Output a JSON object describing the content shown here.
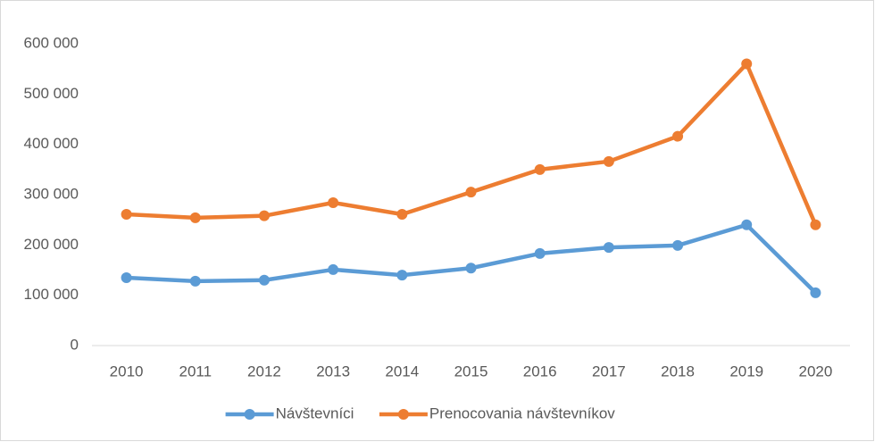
{
  "chart_data": {
    "type": "line",
    "categories": [
      "2010",
      "2011",
      "2012",
      "2013",
      "2014",
      "2015",
      "2016",
      "2017",
      "2018",
      "2019",
      "2020"
    ],
    "series": [
      {
        "name": "Návštevníci",
        "color": "#5b9bd5",
        "values": [
          135000,
          128000,
          130000,
          151000,
          140000,
          154000,
          183000,
          195000,
          199000,
          240000,
          105000
        ]
      },
      {
        "name": "Prenocovania návštevníkov",
        "color": "#ed7d31",
        "values": [
          261000,
          254000,
          258000,
          284000,
          261000,
          305000,
          350000,
          366000,
          416000,
          560000,
          240000
        ]
      }
    ],
    "ylim": [
      0,
      600000
    ],
    "yticks": [
      0,
      {
        "value": 100000,
        "label": "100 000"
      },
      {
        "value": 200000,
        "label": "200 000"
      },
      {
        "value": 300000,
        "label": "300 000"
      },
      {
        "value": 400000,
        "label": "400 000"
      },
      {
        "value": 500000,
        "label": "500 000"
      },
      {
        "value": 600000,
        "label": "600 000"
      }
    ],
    "grid": false,
    "legend": "bottom"
  }
}
